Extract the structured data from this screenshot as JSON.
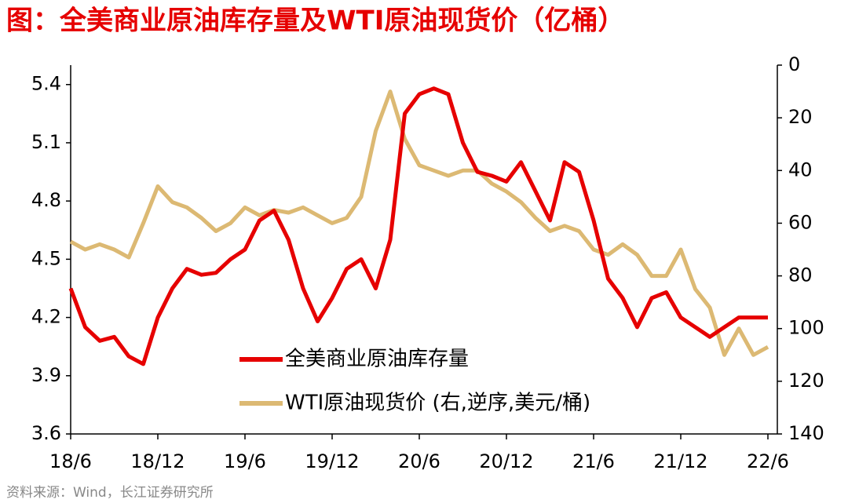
{
  "chart_data": {
    "type": "line",
    "title": "图：全美商业原油库存量及WTI原油现货价（亿桶）",
    "source": "资料来源：Wind，长江证券研究所",
    "categories": [
      "18/6",
      null,
      null,
      null,
      null,
      null,
      "18/12",
      null,
      null,
      null,
      null,
      null,
      "19/6",
      null,
      null,
      null,
      null,
      null,
      "19/12",
      null,
      null,
      null,
      null,
      null,
      "20/6",
      null,
      null,
      null,
      null,
      null,
      "20/12",
      null,
      null,
      null,
      null,
      null,
      "21/6",
      null,
      null,
      null,
      null,
      null,
      "21/12",
      null,
      null,
      null,
      null,
      null,
      "22/6"
    ],
    "series": [
      {
        "name": "全美商业原油库存量",
        "color": "#e60000",
        "axis": "y",
        "values": [
          4.35,
          4.15,
          4.08,
          4.1,
          4.0,
          3.96,
          4.2,
          4.35,
          4.45,
          4.42,
          4.43,
          4.5,
          4.55,
          4.7,
          4.75,
          4.6,
          4.35,
          4.18,
          4.3,
          4.45,
          4.5,
          4.35,
          4.6,
          5.25,
          5.35,
          5.38,
          5.35,
          5.1,
          4.95,
          4.93,
          4.9,
          5.0,
          4.85,
          4.7,
          5.0,
          4.95,
          4.7,
          4.4,
          4.3,
          4.15,
          4.3,
          4.33,
          4.2,
          4.15,
          4.1,
          4.15,
          4.2,
          4.2,
          4.2
        ]
      },
      {
        "name": "WTI原油现货价 (右,逆序,美元/桶)",
        "color": "#dcb973",
        "axis": "y2",
        "values": [
          67,
          70,
          68,
          70,
          73,
          60,
          46,
          52,
          54,
          58,
          63,
          60,
          54,
          57,
          55,
          56,
          54,
          57,
          60,
          58,
          50,
          25,
          10,
          28,
          38,
          40,
          42,
          40,
          40,
          45,
          48,
          52,
          58,
          63,
          61,
          63,
          70,
          72,
          68,
          72,
          80,
          80,
          70,
          85,
          92,
          110,
          100,
          110,
          107
        ]
      }
    ],
    "ylim": [
      3.6,
      5.5
    ],
    "yticks": [
      3.6,
      3.9,
      4.2,
      4.5,
      4.8,
      5.1,
      5.4
    ],
    "y2lim": [
      140,
      0
    ],
    "y2ticks": [
      0,
      20,
      40,
      60,
      80,
      100,
      120,
      140
    ],
    "legend": "lower center"
  }
}
